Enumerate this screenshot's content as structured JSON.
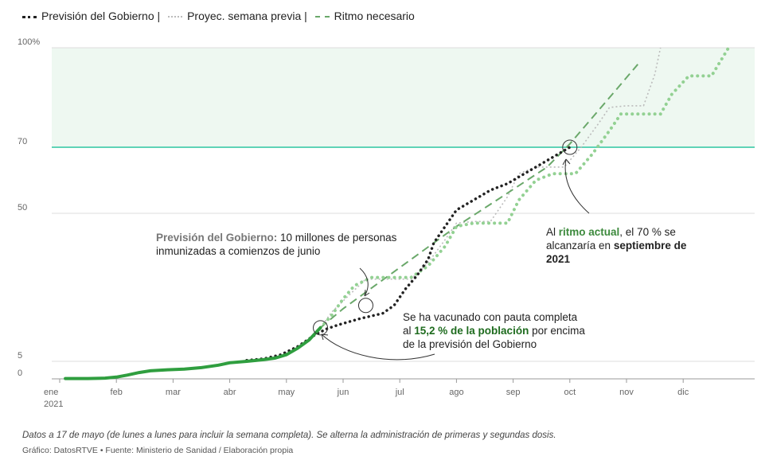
{
  "legend": {
    "government": "Previsión del Gobierno |",
    "previous_week": "Proyec. semana previa |",
    "needed": "Ritmo necesario"
  },
  "annotations": {
    "gov_bold": "Previsión del Gobierno:",
    "gov_rest_1": " 10 millones de personas",
    "gov_rest_2": "inmunizadas a comienzos de junio",
    "pace_1": "Al ",
    "pace_bold_green": "ritmo actual",
    "pace_2": ", el 70 % se",
    "pace_3": "alcanzaría en ",
    "pace_bold": "septiembre de",
    "pace_bold_2": "2021",
    "full_1": "Se ha vacunado con pauta completa",
    "full_2": "al ",
    "full_bold_green": "15,2 % de la población",
    "full_3": " por encima",
    "full_4": "de la previsión del Gobierno"
  },
  "footnote": "Datos a 17 de mayo (de lunes a lunes para incluir la semana completa). Se alterna la administración de primeras y segundas dosis.",
  "source": "Gráfico: DatosRTVE • Fuente: Ministerio de Sanidad / Elaboración propia",
  "colors": {
    "band": "#eef8f1",
    "target_line": "#5fd3b6",
    "actual": "#2f9e3f",
    "government": "#222222",
    "previous_week": "#bbbbbb",
    "projection": "#93d193",
    "needed": "#6aa86a"
  },
  "chart_data": {
    "type": "line",
    "x_axis": {
      "ticks": [
        "ene",
        "feb",
        "mar",
        "abr",
        "may",
        "jun",
        "jul",
        "ago",
        "sep",
        "oct",
        "nov",
        "dic"
      ],
      "year_label": "2021",
      "range_months": [
        0,
        11.8
      ]
    },
    "y_axis": {
      "ticks": [
        0,
        5,
        50,
        70
      ],
      "tick_labels": [
        "0",
        "5",
        "50",
        "70",
        "100%"
      ],
      "top_tick": 100,
      "range": [
        0,
        100
      ],
      "scale": "non-uniform"
    },
    "target_band": [
      70,
      100
    ],
    "series": [
      {
        "name": "",
        "style": "solid",
        "x": [
          0.1,
          0.5,
          0.8,
          1.0,
          1.2,
          1.4,
          1.6,
          1.9,
          2.2,
          2.5,
          2.8,
          3.0,
          3.3,
          3.6,
          3.8,
          4.0,
          4.2,
          4.4,
          4.6
        ],
        "y": [
          0.1,
          0.1,
          0.2,
          0.5,
          1.1,
          1.8,
          2.3,
          2.6,
          2.8,
          3.2,
          3.9,
          4.6,
          5.0,
          5.5,
          6.0,
          7.0,
          9.0,
          11.5,
          15.2
        ]
      },
      {
        "name": "Previsión del Gobierno",
        "style": "dotted",
        "x": [
          3.3,
          3.6,
          3.9,
          4.2,
          4.5,
          4.7,
          4.9,
          5.1,
          5.3,
          5.5,
          5.7,
          5.9,
          6.1,
          6.3,
          6.5,
          6.6,
          6.8,
          7.0,
          7.2,
          7.4,
          7.6,
          7.9,
          8.2,
          8.5,
          8.8,
          9.0
        ],
        "y": [
          5.3,
          5.8,
          7.0,
          9.5,
          13.0,
          14.8,
          16.0,
          17.0,
          18.0,
          18.8,
          19.6,
          22.0,
          27.0,
          31.0,
          36.0,
          41.0,
          46.0,
          51.0,
          53.0,
          55.0,
          57.0,
          59.0,
          62.0,
          65.0,
          68.0,
          70.0
        ]
      },
      {
        "name": "Proyec. semana previa",
        "style": "dotted",
        "x": [
          4.6,
          4.8,
          5.1,
          5.4,
          5.8,
          6.2,
          6.5,
          6.8,
          7.0,
          7.3,
          7.6,
          7.9,
          8.1,
          8.4,
          8.7,
          8.9,
          9.2,
          9.5,
          9.7,
          10.0,
          10.3,
          10.5,
          10.6
        ],
        "y": [
          15.2,
          20.0,
          25.0,
          30.0,
          30.0,
          30.0,
          35.0,
          42.0,
          47.0,
          47.5,
          47.5,
          55.0,
          62.0,
          64.0,
          64.0,
          64.0,
          70.0,
          77.0,
          82.0,
          82.5,
          82.5,
          92.0,
          100.0
        ]
      },
      {
        "name": "",
        "style": "dotted",
        "x": [
          4.6,
          4.8,
          5.0,
          5.2,
          5.5,
          5.8,
          6.2,
          6.5,
          6.8,
          7.0,
          7.3,
          7.6,
          7.9,
          8.1,
          8.4,
          8.7,
          8.9,
          9.1,
          9.4,
          9.7,
          9.9,
          10.3,
          10.6,
          10.8,
          11.1,
          11.3,
          11.5,
          11.8
        ],
        "y": [
          15.2,
          19.0,
          24.0,
          28.0,
          30.5,
          30.5,
          30.5,
          34.0,
          40.0,
          46.0,
          47.0,
          47.0,
          47.0,
          54.0,
          60.0,
          62.0,
          62.0,
          62.0,
          68.0,
          75.0,
          80.0,
          80.0,
          80.0,
          86.0,
          91.5,
          91.5,
          91.5,
          100.0
        ]
      },
      {
        "name": "Ritmo necesario",
        "style": "dashed",
        "x": [
          4.6,
          5.0,
          5.4,
          5.8,
          6.2,
          6.6,
          7.0,
          7.4,
          7.8,
          8.2,
          8.6,
          9.0,
          9.4,
          9.8,
          10.2
        ],
        "y": [
          15.2,
          21.0,
          26.0,
          31.0,
          36.0,
          41.0,
          46.0,
          50.5,
          55.0,
          59.5,
          64.0,
          71.0,
          79.0,
          87.0,
          95.0
        ]
      }
    ],
    "markers": [
      {
        "x": 4.6,
        "y": 15.2
      },
      {
        "x": 5.4,
        "y": 22.0
      },
      {
        "x": 9.0,
        "y": 70.0
      }
    ]
  }
}
